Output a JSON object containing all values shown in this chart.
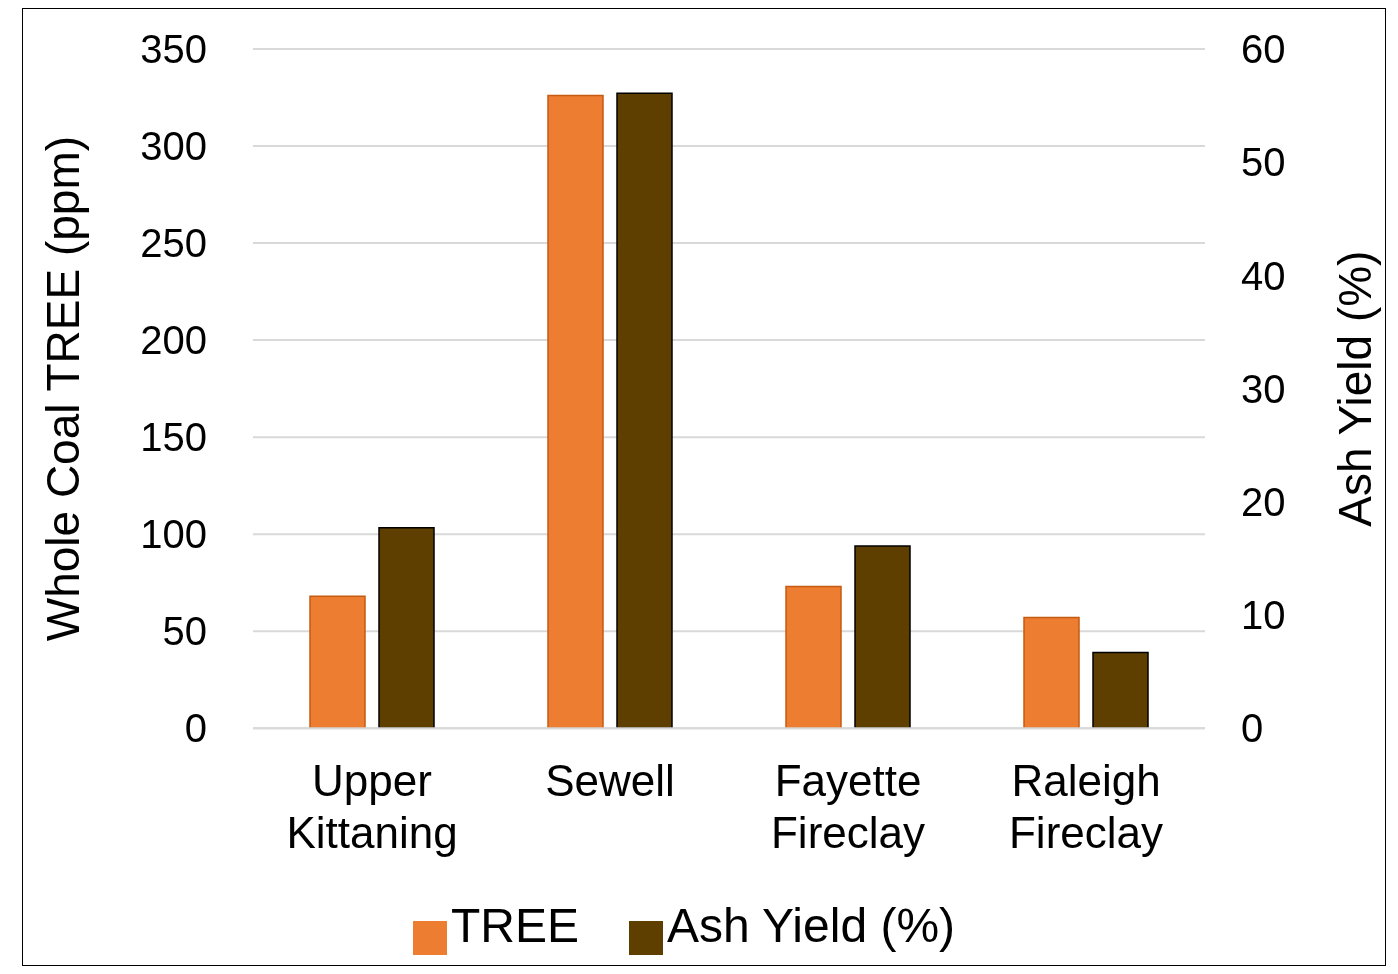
{
  "chart_data": {
    "type": "bar",
    "categories": [
      "Upper Kittaning",
      "Sewell",
      "Fayette Fireclay",
      "Raleigh Fireclay"
    ],
    "series": [
      {
        "name": "TREE",
        "color": "#ed7d31",
        "values": [
          68,
          326,
          73,
          57
        ]
      },
      {
        "name": "Ash Yield (%)",
        "color": "#5f3f00",
        "values": [
          17.7,
          56.1,
          16.1,
          6.7
        ],
        "axis": "y2"
      }
    ],
    "ylabel": "Whole Coal TREE (ppm)",
    "y2label": "Ash Yield (%)",
    "ylim": [
      0,
      350
    ],
    "yticks": [
      0,
      50,
      100,
      150,
      200,
      250,
      300,
      350
    ],
    "y2lim": [
      0,
      60
    ],
    "y2ticks": [
      0,
      10,
      20,
      30,
      40,
      50,
      60
    ],
    "grid": "y",
    "legend": "bottom"
  }
}
